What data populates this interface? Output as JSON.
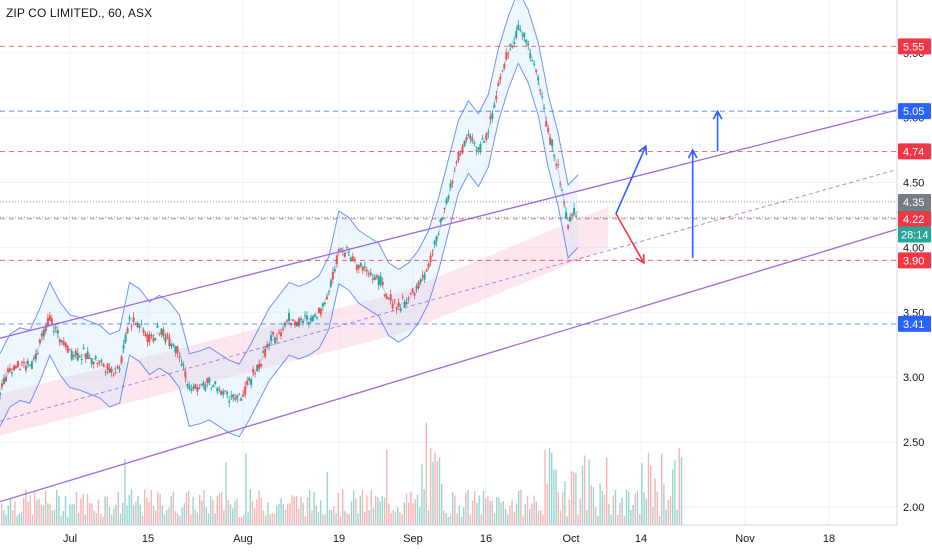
{
  "title": "ZIP CO LIMITED., 60, ASX",
  "chart_data": {
    "type": "candlestick",
    "title": "ZIP CO LIMITED., 60, ASX",
    "x_ticks": [
      "Jul",
      "15",
      "Aug",
      "19",
      "Sep",
      "16",
      "Oct",
      "14",
      "Nov",
      "18"
    ],
    "y_ticks": [
      2.0,
      2.5,
      3.0,
      3.5,
      4.0,
      4.5,
      5.0,
      5.5
    ],
    "ylim": [
      1.86,
      5.83
    ],
    "x_range": [
      "Jun 17",
      "Nov 30"
    ],
    "price_levels": [
      {
        "label": "5.55",
        "value": 5.55,
        "color": "#f23645",
        "style": "dashed"
      },
      {
        "label": "5.05",
        "value": 5.05,
        "color": "#2962ff",
        "style": "dashed"
      },
      {
        "label": "4.74",
        "value": 4.74,
        "color": "#f23645",
        "style": "dashed"
      },
      {
        "label": "4.35",
        "value": 4.35,
        "color": "#787b86",
        "style": "dotted"
      },
      {
        "label": "4.23",
        "value": 4.23,
        "color": "#26a69a",
        "style": "dotted"
      },
      {
        "label": "4.22",
        "value": 4.22,
        "color": "#f23645",
        "style": "dashed"
      },
      {
        "label": "3.90",
        "value": 3.9,
        "color": "#f23645",
        "style": "dashed"
      },
      {
        "label": "3.41",
        "value": 3.41,
        "color": "#2962ff",
        "style": "dashed"
      }
    ],
    "countdown_label": "28:14",
    "price_path": [
      [
        0.0,
        2.9
      ],
      [
        1,
        3.05
      ],
      [
        2,
        3.1
      ],
      [
        3,
        3.08
      ],
      [
        4,
        3.25
      ],
      [
        5,
        3.45
      ],
      [
        6,
        3.3
      ],
      [
        7,
        3.2
      ],
      [
        8,
        3.18
      ],
      [
        9,
        3.15
      ],
      [
        10,
        3.12
      ],
      [
        11,
        3.05
      ],
      [
        12,
        3.08
      ],
      [
        13,
        3.45
      ],
      [
        14,
        3.4
      ],
      [
        15,
        3.3
      ],
      [
        16,
        3.35
      ],
      [
        17,
        3.3
      ],
      [
        18,
        3.2
      ],
      [
        19,
        2.9
      ],
      [
        20,
        2.92
      ],
      [
        21,
        2.95
      ],
      [
        22,
        2.9
      ],
      [
        23,
        2.85
      ],
      [
        24,
        2.82
      ],
      [
        25,
        2.95
      ],
      [
        26,
        3.1
      ],
      [
        27,
        3.25
      ],
      [
        28,
        3.35
      ],
      [
        29,
        3.45
      ],
      [
        30,
        3.42
      ],
      [
        31,
        3.45
      ],
      [
        32,
        3.5
      ],
      [
        33,
        3.65
      ],
      [
        34,
        4.0
      ],
      [
        35,
        3.95
      ],
      [
        36,
        3.85
      ],
      [
        37,
        3.8
      ],
      [
        38,
        3.75
      ],
      [
        39,
        3.6
      ],
      [
        40,
        3.55
      ],
      [
        41,
        3.6
      ],
      [
        42,
        3.7
      ],
      [
        43,
        3.85
      ],
      [
        44,
        4.1
      ],
      [
        45,
        4.4
      ],
      [
        46,
        4.7
      ],
      [
        47,
        4.85
      ],
      [
        48,
        4.75
      ],
      [
        49,
        4.9
      ],
      [
        50,
        5.25
      ],
      [
        51,
        5.5
      ],
      [
        52,
        5.7
      ],
      [
        53,
        5.55
      ],
      [
        54,
        5.3
      ],
      [
        55,
        4.9
      ],
      [
        56,
        4.6
      ],
      [
        57,
        4.2
      ],
      [
        58,
        4.28
      ]
    ],
    "drawings": {
      "channel_upper": [
        [
          0.0,
          3.3
        ],
        [
          90.0,
          5.06
        ]
      ],
      "channel_lower": [
        [
          0.0,
          2.04
        ],
        [
          90.0,
          4.14
        ]
      ],
      "channel_mid": [
        [
          0.0,
          2.66
        ],
        [
          90.0,
          4.6
        ]
      ],
      "arrows": [
        {
          "from": [
            61.8,
            4.26
          ],
          "to": [
            64.8,
            4.78
          ],
          "color": "#2962ff"
        },
        {
          "from": [
            61.8,
            4.26
          ],
          "to": [
            64.6,
            3.88
          ],
          "color": "#f23645"
        },
        {
          "from": [
            69.5,
            3.92
          ],
          "to": [
            69.5,
            4.75
          ],
          "color": "#2962ff"
        },
        {
          "from": [
            72.0,
            4.74
          ],
          "to": [
            72.0,
            5.05
          ],
          "color": "#2962ff"
        }
      ]
    },
    "colors": {
      "up": "#26a69a",
      "down": "#ef5350",
      "channel": "#9c6ade",
      "bands": "#2962ff",
      "ribbon": "#f8bbd0"
    },
    "grid": true,
    "legend": "none"
  }
}
